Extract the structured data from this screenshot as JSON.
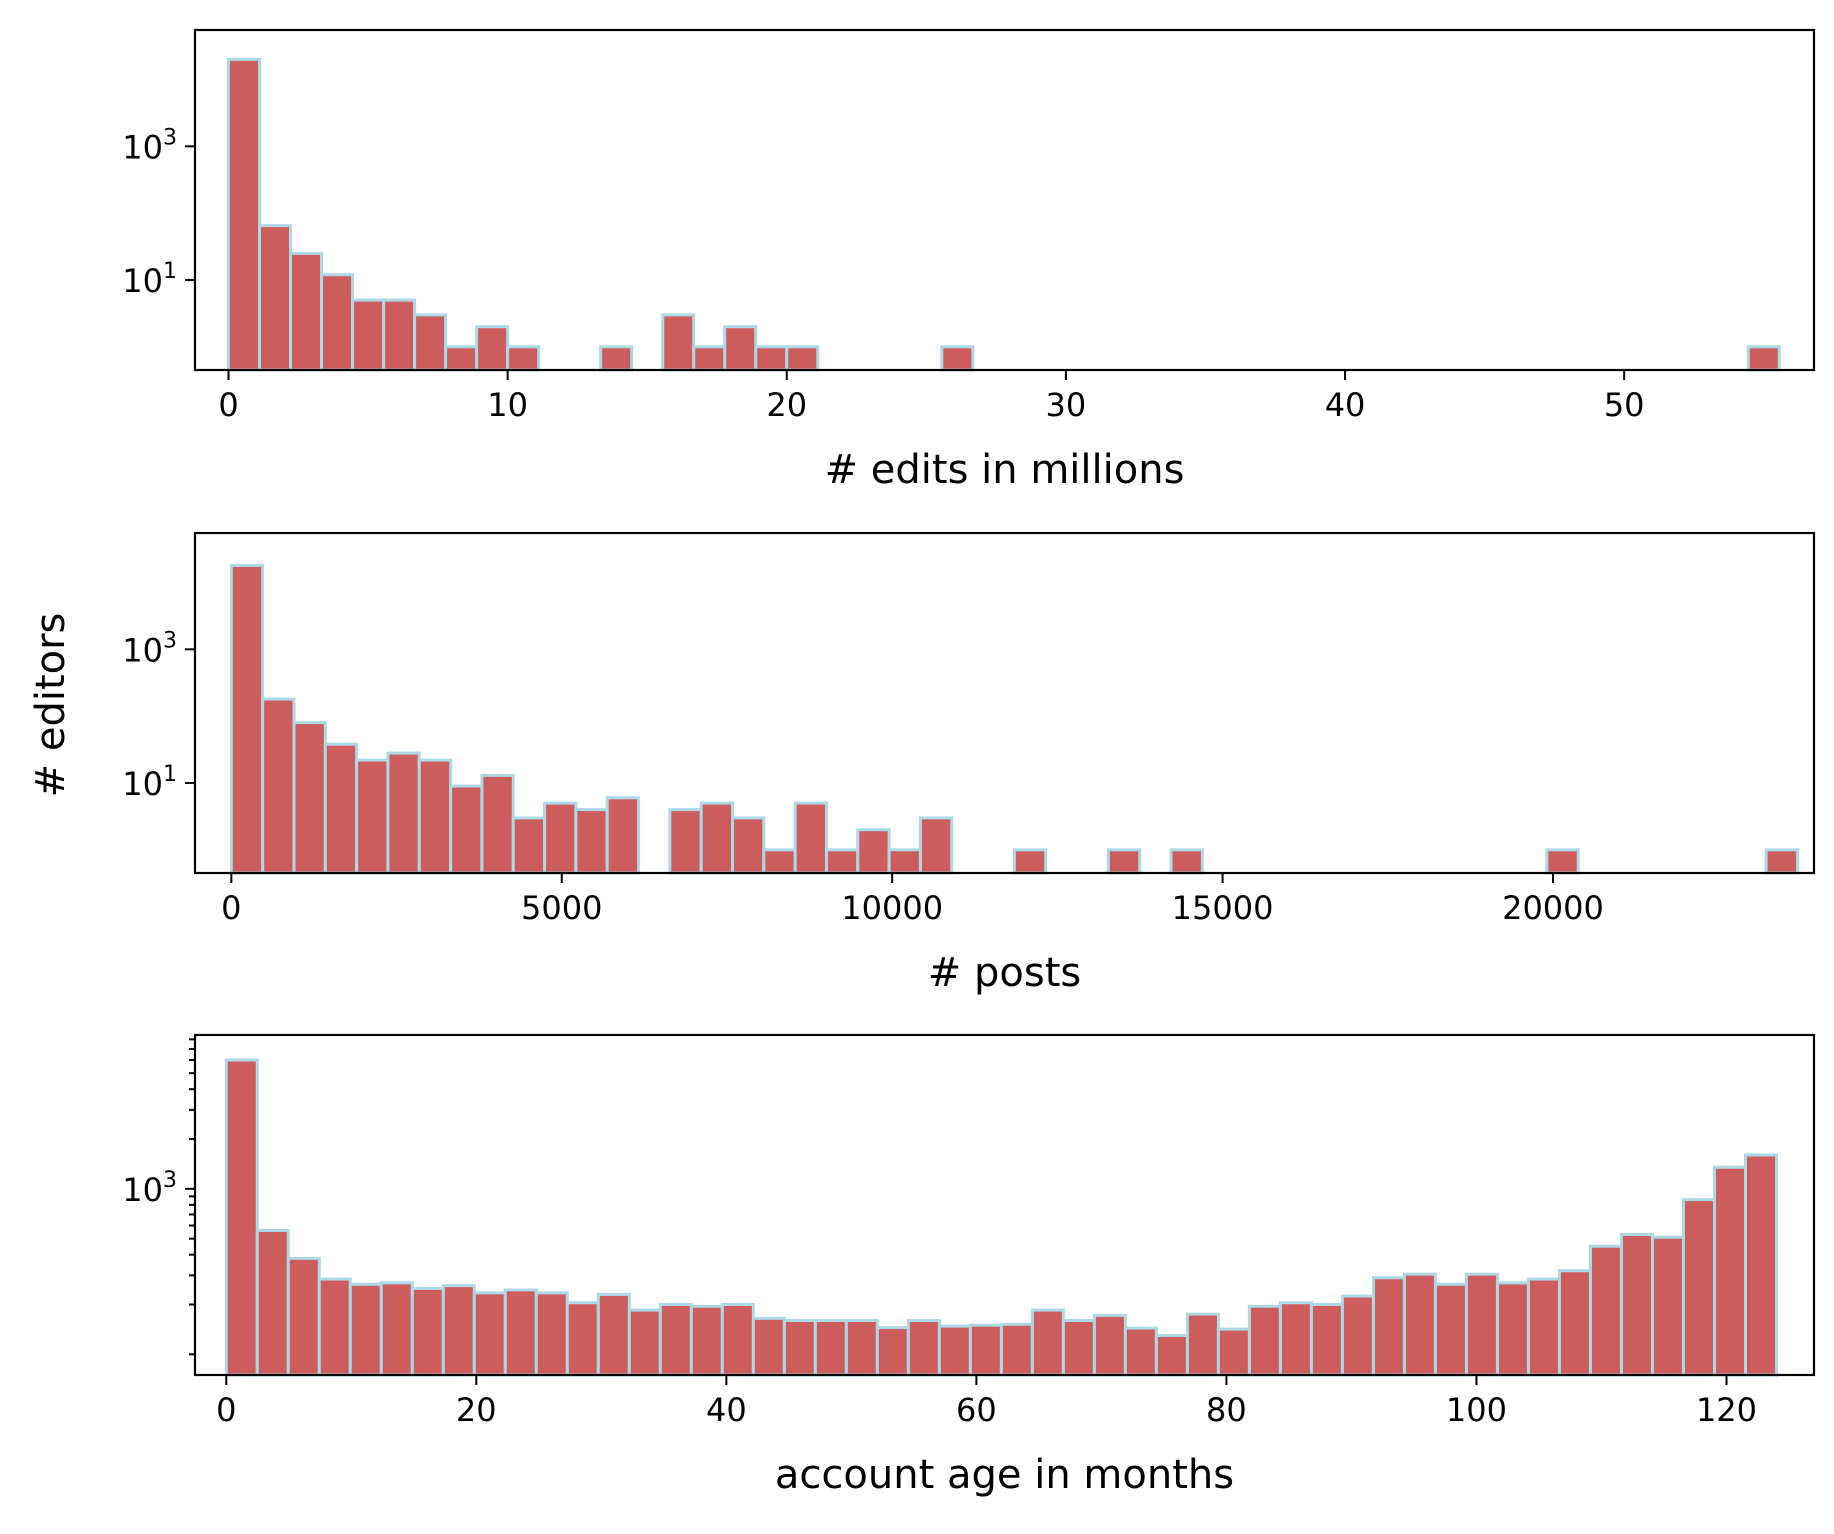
{
  "figure": {
    "shared_ylabel": "# editors"
  },
  "chart_data": [
    {
      "type": "bar",
      "subtype": "histogram",
      "xlabel": "# edits in millions",
      "ylabel": "",
      "y_scale": "log",
      "xlim": [
        -1.2,
        56.8
      ],
      "ylim": [
        0.45,
        55000
      ],
      "x_ticks": [
        0,
        10,
        20,
        30,
        40,
        50
      ],
      "y_ticks": [
        {
          "value": 10,
          "label_base": "10",
          "label_exp": "1"
        },
        {
          "value": 1000,
          "label_base": "10",
          "label_exp": "3"
        }
      ],
      "y_minor_ticks": [],
      "bin_width": 1.111,
      "bins": [
        {
          "x": 0.0,
          "count": 20000
        },
        {
          "x": 1.111,
          "count": 65
        },
        {
          "x": 2.222,
          "count": 25
        },
        {
          "x": 3.333,
          "count": 12
        },
        {
          "x": 4.444,
          "count": 5
        },
        {
          "x": 5.556,
          "count": 5
        },
        {
          "x": 6.667,
          "count": 3
        },
        {
          "x": 7.778,
          "count": 1
        },
        {
          "x": 8.889,
          "count": 2
        },
        {
          "x": 10.0,
          "count": 1
        },
        {
          "x": 13.333,
          "count": 1
        },
        {
          "x": 15.556,
          "count": 3
        },
        {
          "x": 16.667,
          "count": 1
        },
        {
          "x": 17.778,
          "count": 2
        },
        {
          "x": 18.889,
          "count": 1
        },
        {
          "x": 20.0,
          "count": 1
        },
        {
          "x": 25.556,
          "count": 1
        },
        {
          "x": 54.444,
          "count": 1
        }
      ]
    },
    {
      "type": "bar",
      "subtype": "histogram",
      "xlabel": "# posts",
      "ylabel": "",
      "y_scale": "log",
      "xlim": [
        -550,
        23950
      ],
      "ylim": [
        0.45,
        55000
      ],
      "x_ticks": [
        0,
        5000,
        10000,
        15000,
        20000
      ],
      "y_ticks": [
        {
          "value": 10,
          "label_base": "10",
          "label_exp": "1"
        },
        {
          "value": 1000,
          "label_base": "10",
          "label_exp": "3"
        }
      ],
      "y_minor_ticks": [],
      "bin_width": 474,
      "bins": [
        {
          "x": 0,
          "count": 18000
        },
        {
          "x": 474,
          "count": 180
        },
        {
          "x": 948,
          "count": 80
        },
        {
          "x": 1422,
          "count": 38
        },
        {
          "x": 1896,
          "count": 22
        },
        {
          "x": 2370,
          "count": 28
        },
        {
          "x": 2844,
          "count": 22
        },
        {
          "x": 3318,
          "count": 9
        },
        {
          "x": 3792,
          "count": 13
        },
        {
          "x": 4266,
          "count": 3
        },
        {
          "x": 4740,
          "count": 5
        },
        {
          "x": 5214,
          "count": 4
        },
        {
          "x": 5688,
          "count": 6
        },
        {
          "x": 6636,
          "count": 4
        },
        {
          "x": 7110,
          "count": 5
        },
        {
          "x": 7584,
          "count": 3
        },
        {
          "x": 8058,
          "count": 1
        },
        {
          "x": 8532,
          "count": 5
        },
        {
          "x": 9006,
          "count": 1
        },
        {
          "x": 9480,
          "count": 2
        },
        {
          "x": 9954,
          "count": 1
        },
        {
          "x": 10428,
          "count": 3
        },
        {
          "x": 11850,
          "count": 1
        },
        {
          "x": 13272,
          "count": 1
        },
        {
          "x": 14220,
          "count": 1
        },
        {
          "x": 19908,
          "count": 1
        },
        {
          "x": 23226,
          "count": 1
        }
      ]
    },
    {
      "type": "bar",
      "subtype": "histogram",
      "xlabel": "account age in months",
      "ylabel": "",
      "y_scale": "log",
      "xlim": [
        -2.5,
        127.0
      ],
      "ylim": [
        75,
        8500
      ],
      "x_ticks": [
        0,
        20,
        40,
        60,
        80,
        100,
        120
      ],
      "y_ticks": [
        {
          "value": 1000,
          "label_base": "10",
          "label_exp": "3"
        }
      ],
      "y_minor_ticks": [
        100,
        200,
        300,
        400,
        500,
        600,
        700,
        800,
        900,
        2000,
        3000,
        4000,
        5000,
        6000,
        7000,
        8000
      ],
      "bin_width": 2.48,
      "bins": [
        {
          "x": 0.0,
          "count": 6000
        },
        {
          "x": 2.48,
          "count": 560
        },
        {
          "x": 4.96,
          "count": 380
        },
        {
          "x": 7.44,
          "count": 285
        },
        {
          "x": 9.92,
          "count": 265
        },
        {
          "x": 12.4,
          "count": 270
        },
        {
          "x": 14.88,
          "count": 250
        },
        {
          "x": 17.36,
          "count": 260
        },
        {
          "x": 19.84,
          "count": 235
        },
        {
          "x": 22.32,
          "count": 245
        },
        {
          "x": 24.8,
          "count": 235
        },
        {
          "x": 27.28,
          "count": 205
        },
        {
          "x": 29.76,
          "count": 230
        },
        {
          "x": 32.24,
          "count": 185
        },
        {
          "x": 34.72,
          "count": 200
        },
        {
          "x": 37.2,
          "count": 195
        },
        {
          "x": 39.68,
          "count": 200
        },
        {
          "x": 42.16,
          "count": 165
        },
        {
          "x": 44.64,
          "count": 160
        },
        {
          "x": 47.12,
          "count": 160
        },
        {
          "x": 49.6,
          "count": 160
        },
        {
          "x": 52.08,
          "count": 145
        },
        {
          "x": 54.56,
          "count": 160
        },
        {
          "x": 57.04,
          "count": 148
        },
        {
          "x": 59.52,
          "count": 150
        },
        {
          "x": 62.0,
          "count": 152
        },
        {
          "x": 64.48,
          "count": 185
        },
        {
          "x": 66.96,
          "count": 160
        },
        {
          "x": 69.44,
          "count": 172
        },
        {
          "x": 71.92,
          "count": 144
        },
        {
          "x": 74.4,
          "count": 130
        },
        {
          "x": 76.88,
          "count": 175
        },
        {
          "x": 79.36,
          "count": 142
        },
        {
          "x": 81.84,
          "count": 195
        },
        {
          "x": 84.32,
          "count": 205
        },
        {
          "x": 86.8,
          "count": 200
        },
        {
          "x": 89.28,
          "count": 225
        },
        {
          "x": 91.76,
          "count": 290
        },
        {
          "x": 94.24,
          "count": 305
        },
        {
          "x": 96.72,
          "count": 265
        },
        {
          "x": 99.2,
          "count": 305
        },
        {
          "x": 101.68,
          "count": 270
        },
        {
          "x": 104.16,
          "count": 285
        },
        {
          "x": 106.64,
          "count": 320
        },
        {
          "x": 109.12,
          "count": 450
        },
        {
          "x": 111.6,
          "count": 530
        },
        {
          "x": 114.08,
          "count": 510
        },
        {
          "x": 116.56,
          "count": 860
        },
        {
          "x": 119.04,
          "count": 1350
        },
        {
          "x": 121.52,
          "count": 1600
        }
      ]
    }
  ]
}
